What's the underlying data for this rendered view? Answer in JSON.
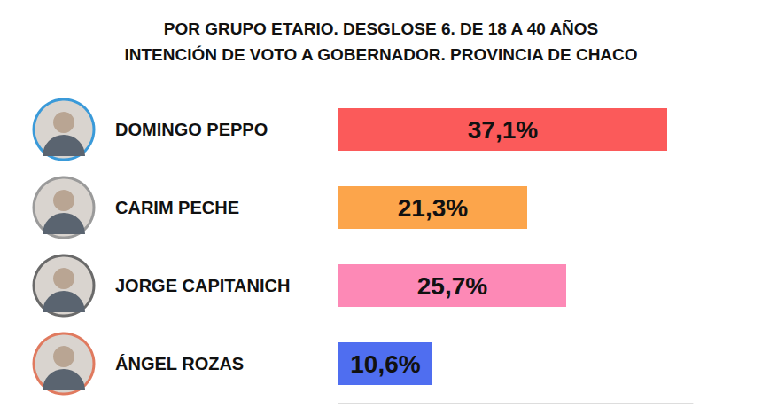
{
  "chart_data": {
    "type": "bar",
    "title": "POR GRUPO ETARIO. DESGLOSE 6. DE 18 A 40 AÑOS",
    "subtitle": "INTENCIÓN DE VOTO A GOBERNADOR. PROVINCIA DE CHACO",
    "orientation": "horizontal",
    "categories": [
      "DOMINGO PEPPO",
      "CARIM PECHE",
      "JORGE CAPITANICH",
      "ÁNGEL ROZAS"
    ],
    "values": [
      37.1,
      21.3,
      25.7,
      10.6
    ],
    "value_labels": [
      "37,1%",
      "21,3%",
      "25,7%",
      "10,6%"
    ],
    "colors": [
      "#fb5a5a",
      "#fca54b",
      "#fd89b6",
      "#4f6ef0"
    ],
    "xlim": [
      0,
      40
    ],
    "data_labels": true,
    "tick_labels": false,
    "grid": false
  }
}
